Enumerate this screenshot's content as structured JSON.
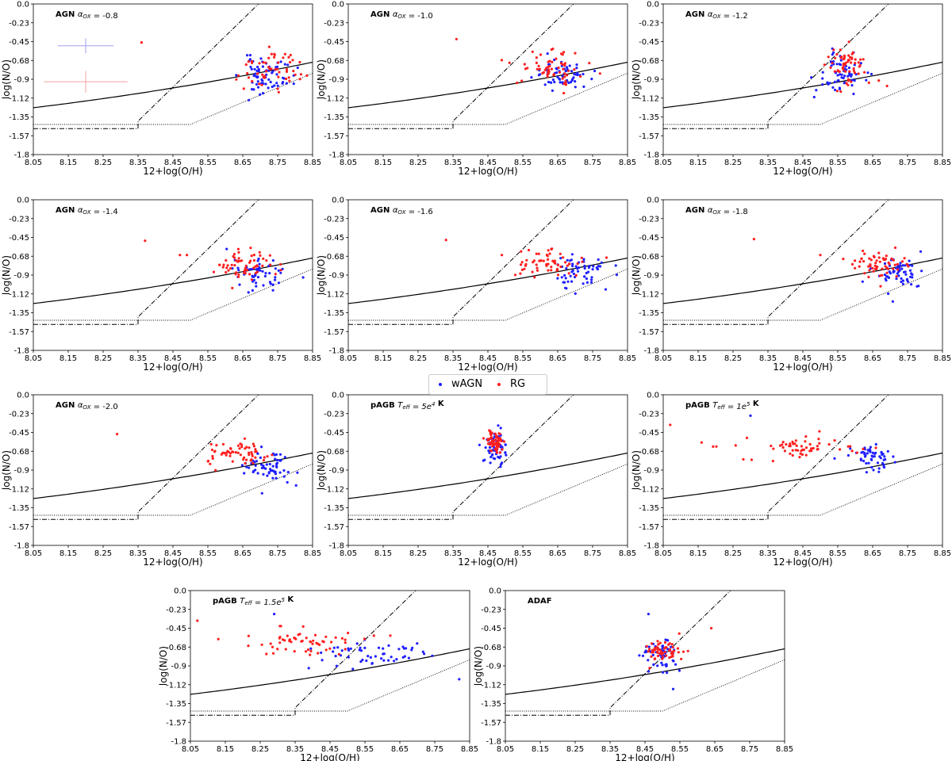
{
  "figure": {
    "legend": [
      {
        "label": "wAGN",
        "color": "#1f1fff"
      },
      {
        "label": "RG",
        "color": "#ff1f1f"
      }
    ]
  },
  "chart_data": [
    {
      "type": "scatter",
      "title": "AGN $\\alpha_{OX} = -0.8$",
      "xlabel": "12+log(O/H)",
      "ylabel": "log(N/O)",
      "xlim": [
        8.05,
        8.85
      ],
      "ylim": [
        -1.8,
        0.0
      ],
      "xticks": [
        "8.05",
        "8.15",
        "8.25",
        "8.35",
        "8.45",
        "8.55",
        "8.65",
        "8.75",
        "8.85"
      ],
      "yticks": [
        "0.0",
        "-0.23",
        "-0.45",
        "-0.68",
        "-0.9",
        "-1.12",
        "-1.35",
        "-1.57",
        "-1.8"
      ],
      "error_bars": [
        {
          "series": "wAGN",
          "x": 8.2,
          "y": -0.5,
          "xerr": 0.08,
          "yerr": 0.09
        },
        {
          "series": "RG",
          "x": 8.2,
          "y": -0.93,
          "xerr": 0.12,
          "yerr": 0.13
        }
      ],
      "series": [
        {
          "name": "wAGN",
          "color": "#1f1fff",
          "seed": 11,
          "n": 70,
          "x_center": 8.72,
          "x_spread": 0.05,
          "y_center": -0.85,
          "y_spread": 0.14
        },
        {
          "name": "RG",
          "color": "#ff1f1f",
          "seed": 12,
          "n": 55,
          "x_center": 8.73,
          "x_spread": 0.06,
          "y_center": -0.78,
          "y_spread": 0.15,
          "outliers": [
            {
              "x": 8.36,
              "y": -0.46
            }
          ]
        }
      ]
    },
    {
      "type": "scatter",
      "title": "AGN $\\alpha_{OX} = -1.0$",
      "xlabel": "12+log(O/H)",
      "ylabel": "log(N/O)",
      "xlim": [
        8.05,
        8.85
      ],
      "ylim": [
        -1.8,
        0.0
      ],
      "xticks": [
        "8.05",
        "8.15",
        "8.25",
        "8.35",
        "8.45",
        "8.55",
        "8.65",
        "8.75",
        "8.85"
      ],
      "yticks": [
        "0.0",
        "-0.23",
        "-0.45",
        "-0.68",
        "-0.9",
        "-1.12",
        "-1.35",
        "-1.57",
        "-1.8"
      ],
      "series": [
        {
          "name": "wAGN",
          "color": "#1f1fff",
          "seed": 21,
          "n": 65,
          "x_center": 8.66,
          "x_spread": 0.05,
          "y_center": -0.85,
          "y_spread": 0.13
        },
        {
          "name": "RG",
          "color": "#ff1f1f",
          "seed": 22,
          "n": 60,
          "x_center": 8.63,
          "x_spread": 0.06,
          "y_center": -0.74,
          "y_spread": 0.13,
          "outliers": [
            {
              "x": 8.36,
              "y": -0.42
            }
          ]
        }
      ]
    },
    {
      "type": "scatter",
      "title": "AGN $\\alpha_{OX} = -1.2$",
      "xlabel": "12+log(O/H)",
      "ylabel": "log(N/O)",
      "xlim": [
        8.05,
        8.85
      ],
      "ylim": [
        -1.8,
        0.0
      ],
      "xticks": [
        "8.05",
        "8.15",
        "8.25",
        "8.35",
        "8.45",
        "8.55",
        "8.65",
        "8.75",
        "8.85"
      ],
      "yticks": [
        "0.0",
        "-0.23",
        "-0.45",
        "-0.68",
        "-0.9",
        "-1.12",
        "-1.35",
        "-1.57",
        "-1.8"
      ],
      "series": [
        {
          "name": "wAGN",
          "color": "#1f1fff",
          "seed": 31,
          "n": 65,
          "x_center": 8.56,
          "x_spread": 0.04,
          "y_center": -0.83,
          "y_spread": 0.16
        },
        {
          "name": "RG",
          "color": "#ff1f1f",
          "seed": 32,
          "n": 60,
          "x_center": 8.58,
          "x_spread": 0.04,
          "y_center": -0.72,
          "y_spread": 0.15
        }
      ]
    },
    {
      "type": "scatter",
      "title": "AGN $\\alpha_{OX} = -1.4$",
      "xlabel": "12+log(O/H)",
      "ylabel": "log(N/O)",
      "xlim": [
        8.05,
        8.85
      ],
      "ylim": [
        -1.8,
        0.0
      ],
      "xticks": [
        "8.05",
        "8.15",
        "8.25",
        "8.35",
        "8.45",
        "8.55",
        "8.65",
        "8.75",
        "8.85"
      ],
      "yticks": [
        "0.0",
        "-0.23",
        "-0.45",
        "-0.68",
        "-0.9",
        "-1.12",
        "-1.35",
        "-1.57",
        "-1.8"
      ],
      "series": [
        {
          "name": "wAGN",
          "color": "#1f1fff",
          "seed": 41,
          "n": 60,
          "x_center": 8.7,
          "x_spread": 0.05,
          "y_center": -0.88,
          "y_spread": 0.14
        },
        {
          "name": "RG",
          "color": "#ff1f1f",
          "seed": 42,
          "n": 60,
          "x_center": 8.65,
          "x_spread": 0.06,
          "y_center": -0.76,
          "y_spread": 0.12,
          "outliers": [
            {
              "x": 8.37,
              "y": -0.49
            },
            {
              "x": 8.49,
              "y": -0.66
            },
            {
              "x": 8.47,
              "y": -0.66
            }
          ]
        }
      ]
    },
    {
      "type": "scatter",
      "title": "AGN $\\alpha_{OX} = -1.6$",
      "xlabel": "12+log(O/H)",
      "ylabel": "log(N/O)",
      "xlim": [
        8.05,
        8.85
      ],
      "ylim": [
        -1.8,
        0.0
      ],
      "xticks": [
        "8.05",
        "8.15",
        "8.25",
        "8.35",
        "8.45",
        "8.55",
        "8.65",
        "8.75",
        "8.85"
      ],
      "yticks": [
        "0.0",
        "-0.23",
        "-0.45",
        "-0.68",
        "-0.9",
        "-1.12",
        "-1.35",
        "-1.57",
        "-1.8"
      ],
      "series": [
        {
          "name": "wAGN",
          "color": "#1f1fff",
          "seed": 51,
          "n": 60,
          "x_center": 8.71,
          "x_spread": 0.05,
          "y_center": -0.87,
          "y_spread": 0.14
        },
        {
          "name": "RG",
          "color": "#ff1f1f",
          "seed": 52,
          "n": 60,
          "x_center": 8.64,
          "x_spread": 0.06,
          "y_center": -0.75,
          "y_spread": 0.12,
          "outliers": [
            {
              "x": 8.33,
              "y": -0.48
            },
            {
              "x": 8.49,
              "y": -0.66
            }
          ]
        }
      ]
    },
    {
      "type": "scatter",
      "title": "AGN $\\alpha_{OX} = -1.8$",
      "xlabel": "12+log(O/H)",
      "ylabel": "log(N/O)",
      "xlim": [
        8.05,
        8.85
      ],
      "ylim": [
        -1.8,
        0.0
      ],
      "xticks": [
        "8.05",
        "8.15",
        "8.25",
        "8.35",
        "8.45",
        "8.55",
        "8.65",
        "8.75",
        "8.85"
      ],
      "yticks": [
        "0.0",
        "-0.23",
        "-0.45",
        "-0.68",
        "-0.9",
        "-1.12",
        "-1.35",
        "-1.57",
        "-1.8"
      ],
      "series": [
        {
          "name": "wAGN",
          "color": "#1f1fff",
          "seed": 61,
          "n": 60,
          "x_center": 8.72,
          "x_spread": 0.05,
          "y_center": -0.86,
          "y_spread": 0.14
        },
        {
          "name": "RG",
          "color": "#ff1f1f",
          "seed": 62,
          "n": 60,
          "x_center": 8.66,
          "x_spread": 0.06,
          "y_center": -0.76,
          "y_spread": 0.12,
          "outliers": [
            {
              "x": 8.31,
              "y": -0.47
            },
            {
              "x": 8.5,
              "y": -0.66
            }
          ]
        }
      ]
    },
    {
      "type": "scatter",
      "title": "AGN $\\alpha_{OX} = -2.0$",
      "xlabel": "12+log(O/H)",
      "ylabel": "log(N/O)",
      "xlim": [
        8.05,
        8.85
      ],
      "ylim": [
        -1.8,
        0.0
      ],
      "xticks": [
        "8.05",
        "8.15",
        "8.25",
        "8.35",
        "8.45",
        "8.55",
        "8.65",
        "8.75",
        "8.85"
      ],
      "yticks": [
        "0.0",
        "-0.23",
        "-0.45",
        "-0.68",
        "-0.9",
        "-1.12",
        "-1.35",
        "-1.57",
        "-1.8"
      ],
      "series": [
        {
          "name": "wAGN",
          "color": "#1f1fff",
          "seed": 71,
          "n": 60,
          "x_center": 8.72,
          "x_spread": 0.05,
          "y_center": -0.86,
          "y_spread": 0.14
        },
        {
          "name": "RG",
          "color": "#ff1f1f",
          "seed": 72,
          "n": 60,
          "x_center": 8.63,
          "x_spread": 0.07,
          "y_center": -0.72,
          "y_spread": 0.12,
          "outliers": [
            {
              "x": 8.29,
              "y": -0.47
            }
          ]
        }
      ]
    },
    {
      "type": "scatter",
      "title": "pAGB $T_{eff} = 5e^4$ K",
      "xlabel": "12+log(O/H)",
      "ylabel": "log(N/O)",
      "xlim": [
        8.05,
        8.85
      ],
      "ylim": [
        -1.8,
        0.0
      ],
      "xticks": [
        "8.05",
        "8.15",
        "8.25",
        "8.35",
        "8.45",
        "8.55",
        "8.65",
        "8.75",
        "8.85"
      ],
      "yticks": [
        "0.0",
        "-0.23",
        "-0.45",
        "-0.68",
        "-0.9",
        "-1.12",
        "-1.35",
        "-1.57",
        "-1.8"
      ],
      "series": [
        {
          "name": "wAGN",
          "color": "#1f1fff",
          "seed": 81,
          "n": 60,
          "x_center": 8.47,
          "x_spread": 0.02,
          "y_center": -0.62,
          "y_spread": 0.14
        },
        {
          "name": "RG",
          "color": "#ff1f1f",
          "seed": 82,
          "n": 60,
          "x_center": 8.47,
          "x_spread": 0.02,
          "y_center": -0.55,
          "y_spread": 0.1
        }
      ]
    },
    {
      "type": "scatter",
      "title": "pAGB $T_{eff} = 1e^5$ K",
      "xlabel": "12+log(O/H)",
      "ylabel": "log(N/O)",
      "xlim": [
        8.05,
        8.85
      ],
      "ylim": [
        -1.8,
        0.0
      ],
      "xticks": [
        "8.05",
        "8.15",
        "8.25",
        "8.35",
        "8.45",
        "8.55",
        "8.65",
        "8.75",
        "8.85"
      ],
      "yticks": [
        "0.0",
        "-0.23",
        "-0.45",
        "-0.68",
        "-0.9",
        "-1.12",
        "-1.35",
        "-1.57",
        "-1.8"
      ],
      "series": [
        {
          "name": "wAGN",
          "color": "#1f1fff",
          "seed": 91,
          "n": 55,
          "x_center": 8.64,
          "x_spread": 0.05,
          "y_center": -0.74,
          "y_spread": 0.1,
          "outliers": [
            {
              "x": 8.3,
              "y": -0.25
            }
          ]
        },
        {
          "name": "RG",
          "color": "#ff1f1f",
          "seed": 92,
          "n": 60,
          "x_center": 8.45,
          "x_spread": 0.12,
          "y_center": -0.62,
          "y_spread": 0.09,
          "outliers": [
            {
              "x": 8.07,
              "y": -0.36
            },
            {
              "x": 8.16,
              "y": -0.57
            }
          ]
        }
      ]
    },
    {
      "type": "scatter",
      "title": "pAGB $T_{eff} = 1.5e^5$ K",
      "xlabel": "12+log(O/H)",
      "ylabel": "log(N/O)",
      "xlim": [
        8.05,
        8.85
      ],
      "ylim": [
        -1.8,
        0.0
      ],
      "xticks": [
        "8.05",
        "8.15",
        "8.25",
        "8.35",
        "8.45",
        "8.55",
        "8.65",
        "8.75",
        "8.85"
      ],
      "yticks": [
        "0.0",
        "-0.23",
        "-0.45",
        "-0.68",
        "-0.9",
        "-1.12",
        "-1.35",
        "-1.57",
        "-1.8"
      ],
      "series": [
        {
          "name": "wAGN",
          "color": "#1f1fff",
          "seed": 101,
          "n": 55,
          "x_center": 8.58,
          "x_spread": 0.12,
          "y_center": -0.76,
          "y_spread": 0.1,
          "outliers": [
            {
              "x": 8.29,
              "y": -0.28
            },
            {
              "x": 8.82,
              "y": -1.06
            }
          ]
        },
        {
          "name": "RG",
          "color": "#ff1f1f",
          "seed": 102,
          "n": 60,
          "x_center": 8.38,
          "x_spread": 0.12,
          "y_center": -0.62,
          "y_spread": 0.09,
          "outliers": [
            {
              "x": 8.07,
              "y": -0.36
            },
            {
              "x": 8.13,
              "y": -0.58
            }
          ]
        }
      ]
    },
    {
      "type": "scatter",
      "title": "ADAF",
      "xlabel": "12+log(O/H)",
      "ylabel": "log(N/O)",
      "xlim": [
        8.05,
        8.85
      ],
      "ylim": [
        -1.8,
        0.0
      ],
      "xticks": [
        "8.05",
        "8.15",
        "8.25",
        "8.35",
        "8.45",
        "8.55",
        "8.65",
        "8.75",
        "8.85"
      ],
      "yticks": [
        "0.0",
        "-0.23",
        "-0.45",
        "-0.68",
        "-0.9",
        "-1.12",
        "-1.35",
        "-1.57",
        "-1.8"
      ],
      "series": [
        {
          "name": "wAGN",
          "color": "#1f1fff",
          "seed": 111,
          "n": 60,
          "x_center": 8.5,
          "x_spread": 0.04,
          "y_center": -0.77,
          "y_spread": 0.13,
          "outliers": [
            {
              "x": 8.46,
              "y": -0.28
            }
          ]
        },
        {
          "name": "RG",
          "color": "#ff1f1f",
          "seed": 112,
          "n": 60,
          "x_center": 8.5,
          "x_spread": 0.04,
          "y_center": -0.7,
          "y_spread": 0.1,
          "outliers": [
            {
              "x": 8.64,
              "y": -0.45
            }
          ]
        }
      ]
    }
  ]
}
